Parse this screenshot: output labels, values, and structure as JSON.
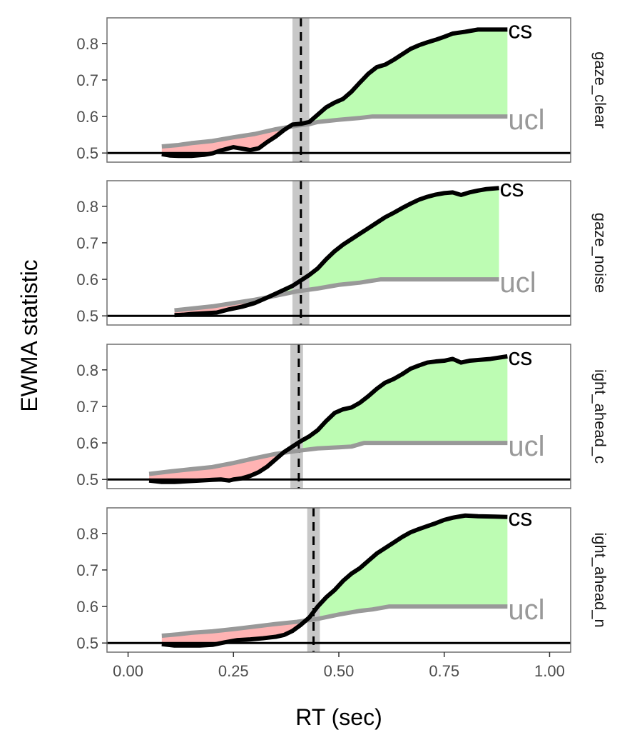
{
  "chart_data": {
    "type": "line",
    "xlabel": "RT (sec)",
    "ylabel": "EWMA statistic",
    "xlim": [
      -0.05,
      1.05
    ],
    "ylim": [
      0.475,
      0.87
    ],
    "x_ticks": [
      0.0,
      0.25,
      0.5,
      0.75,
      1.0
    ],
    "x_tick_labels": [
      "0.00",
      "0.25",
      "0.50",
      "0.75",
      "1.00"
    ],
    "y_ticks": [
      0.5,
      0.6,
      0.7,
      0.8
    ],
    "y_tick_labels": [
      "0.5",
      "0.6",
      "0.7",
      "0.8"
    ],
    "baseline": 0.5,
    "grid": false,
    "end_labels": {
      "cs": "cs",
      "ucl": "ucl"
    },
    "colors": {
      "cs": "#000000",
      "ucl": "#999999",
      "above_fill": "#bdfcb3",
      "below_fill": "#ffb3b3",
      "cutoff_band": "#c8c8c8",
      "panel_border": "#6f6f6f"
    },
    "panels": [
      {
        "strip": "gaze_clear",
        "cutoff": 0.41,
        "cutoff_band": [
          0.39,
          0.43
        ],
        "cs": [
          [
            0.08,
            0.497
          ],
          [
            0.1,
            0.493
          ],
          [
            0.12,
            0.492
          ],
          [
            0.15,
            0.492
          ],
          [
            0.18,
            0.495
          ],
          [
            0.2,
            0.499
          ],
          [
            0.22,
            0.507
          ],
          [
            0.25,
            0.516
          ],
          [
            0.27,
            0.512
          ],
          [
            0.29,
            0.508
          ],
          [
            0.31,
            0.513
          ],
          [
            0.33,
            0.53
          ],
          [
            0.35,
            0.545
          ],
          [
            0.37,
            0.563
          ],
          [
            0.39,
            0.578
          ],
          [
            0.41,
            0.58
          ],
          [
            0.43,
            0.585
          ],
          [
            0.45,
            0.605
          ],
          [
            0.47,
            0.625
          ],
          [
            0.49,
            0.638
          ],
          [
            0.51,
            0.648
          ],
          [
            0.53,
            0.668
          ],
          [
            0.55,
            0.693
          ],
          [
            0.57,
            0.717
          ],
          [
            0.59,
            0.735
          ],
          [
            0.61,
            0.742
          ],
          [
            0.63,
            0.755
          ],
          [
            0.65,
            0.77
          ],
          [
            0.67,
            0.785
          ],
          [
            0.69,
            0.795
          ],
          [
            0.71,
            0.803
          ],
          [
            0.73,
            0.81
          ],
          [
            0.75,
            0.818
          ],
          [
            0.77,
            0.827
          ],
          [
            0.8,
            0.832
          ],
          [
            0.83,
            0.838
          ],
          [
            0.87,
            0.838
          ],
          [
            0.9,
            0.838
          ]
        ],
        "ucl": [
          [
            0.08,
            0.518
          ],
          [
            0.12,
            0.522
          ],
          [
            0.15,
            0.527
          ],
          [
            0.2,
            0.533
          ],
          [
            0.25,
            0.543
          ],
          [
            0.3,
            0.552
          ],
          [
            0.35,
            0.565
          ],
          [
            0.4,
            0.575
          ],
          [
            0.43,
            0.579
          ],
          [
            0.45,
            0.585
          ],
          [
            0.5,
            0.591
          ],
          [
            0.55,
            0.596
          ],
          [
            0.58,
            0.6
          ],
          [
            0.62,
            0.6
          ],
          [
            0.7,
            0.6
          ],
          [
            0.8,
            0.6
          ],
          [
            0.9,
            0.6
          ]
        ]
      },
      {
        "strip": "gaze_noise",
        "cutoff": 0.41,
        "cutoff_band": [
          0.39,
          0.43
        ],
        "cs": [
          [
            0.11,
            0.502
          ],
          [
            0.13,
            0.503
          ],
          [
            0.15,
            0.505
          ],
          [
            0.18,
            0.507
          ],
          [
            0.21,
            0.509
          ],
          [
            0.24,
            0.518
          ],
          [
            0.27,
            0.525
          ],
          [
            0.3,
            0.535
          ],
          [
            0.33,
            0.55
          ],
          [
            0.36,
            0.566
          ],
          [
            0.39,
            0.582
          ],
          [
            0.41,
            0.597
          ],
          [
            0.43,
            0.612
          ],
          [
            0.45,
            0.63
          ],
          [
            0.47,
            0.655
          ],
          [
            0.49,
            0.677
          ],
          [
            0.51,
            0.695
          ],
          [
            0.53,
            0.71
          ],
          [
            0.55,
            0.725
          ],
          [
            0.57,
            0.74
          ],
          [
            0.59,
            0.755
          ],
          [
            0.61,
            0.77
          ],
          [
            0.63,
            0.782
          ],
          [
            0.65,
            0.795
          ],
          [
            0.67,
            0.807
          ],
          [
            0.69,
            0.818
          ],
          [
            0.71,
            0.826
          ],
          [
            0.73,
            0.832
          ],
          [
            0.75,
            0.836
          ],
          [
            0.77,
            0.838
          ],
          [
            0.79,
            0.831
          ],
          [
            0.81,
            0.838
          ],
          [
            0.83,
            0.843
          ],
          [
            0.85,
            0.847
          ],
          [
            0.88,
            0.85
          ]
        ],
        "ucl": [
          [
            0.11,
            0.515
          ],
          [
            0.15,
            0.52
          ],
          [
            0.2,
            0.526
          ],
          [
            0.25,
            0.535
          ],
          [
            0.3,
            0.544
          ],
          [
            0.35,
            0.555
          ],
          [
            0.4,
            0.567
          ],
          [
            0.45,
            0.575
          ],
          [
            0.5,
            0.585
          ],
          [
            0.55,
            0.591
          ],
          [
            0.6,
            0.6
          ],
          [
            0.7,
            0.6
          ],
          [
            0.8,
            0.6
          ],
          [
            0.88,
            0.6
          ]
        ]
      },
      {
        "strip": "ight_ahead_c",
        "cutoff": 0.405,
        "cutoff_band": [
          0.385,
          0.415
        ],
        "cs": [
          [
            0.05,
            0.497
          ],
          [
            0.08,
            0.493
          ],
          [
            0.11,
            0.493
          ],
          [
            0.14,
            0.495
          ],
          [
            0.17,
            0.497
          ],
          [
            0.2,
            0.499
          ],
          [
            0.22,
            0.5
          ],
          [
            0.24,
            0.497
          ],
          [
            0.25,
            0.5
          ],
          [
            0.27,
            0.503
          ],
          [
            0.29,
            0.51
          ],
          [
            0.31,
            0.52
          ],
          [
            0.33,
            0.535
          ],
          [
            0.35,
            0.555
          ],
          [
            0.37,
            0.575
          ],
          [
            0.39,
            0.59
          ],
          [
            0.41,
            0.605
          ],
          [
            0.43,
            0.618
          ],
          [
            0.45,
            0.635
          ],
          [
            0.47,
            0.66
          ],
          [
            0.49,
            0.682
          ],
          [
            0.51,
            0.692
          ],
          [
            0.53,
            0.697
          ],
          [
            0.55,
            0.71
          ],
          [
            0.57,
            0.728
          ],
          [
            0.59,
            0.748
          ],
          [
            0.61,
            0.765
          ],
          [
            0.63,
            0.775
          ],
          [
            0.65,
            0.788
          ],
          [
            0.67,
            0.803
          ],
          [
            0.69,
            0.812
          ],
          [
            0.71,
            0.82
          ],
          [
            0.73,
            0.823
          ],
          [
            0.75,
            0.825
          ],
          [
            0.77,
            0.83
          ],
          [
            0.79,
            0.82
          ],
          [
            0.81,
            0.825
          ],
          [
            0.83,
            0.827
          ],
          [
            0.86,
            0.83
          ],
          [
            0.9,
            0.837
          ]
        ],
        "ucl": [
          [
            0.05,
            0.515
          ],
          [
            0.1,
            0.522
          ],
          [
            0.15,
            0.528
          ],
          [
            0.2,
            0.534
          ],
          [
            0.25,
            0.545
          ],
          [
            0.3,
            0.558
          ],
          [
            0.35,
            0.57
          ],
          [
            0.4,
            0.578
          ],
          [
            0.45,
            0.585
          ],
          [
            0.5,
            0.588
          ],
          [
            0.53,
            0.59
          ],
          [
            0.56,
            0.6
          ],
          [
            0.6,
            0.6
          ],
          [
            0.7,
            0.6
          ],
          [
            0.8,
            0.6
          ],
          [
            0.9,
            0.6
          ]
        ]
      },
      {
        "strip": "ight_ahead_n",
        "cutoff": 0.44,
        "cutoff_band": [
          0.425,
          0.455
        ],
        "cs": [
          [
            0.08,
            0.497
          ],
          [
            0.11,
            0.493
          ],
          [
            0.14,
            0.493
          ],
          [
            0.17,
            0.493
          ],
          [
            0.2,
            0.495
          ],
          [
            0.23,
            0.502
          ],
          [
            0.26,
            0.508
          ],
          [
            0.29,
            0.51
          ],
          [
            0.32,
            0.513
          ],
          [
            0.35,
            0.517
          ],
          [
            0.37,
            0.522
          ],
          [
            0.39,
            0.533
          ],
          [
            0.41,
            0.55
          ],
          [
            0.43,
            0.57
          ],
          [
            0.45,
            0.6
          ],
          [
            0.47,
            0.625
          ],
          [
            0.49,
            0.645
          ],
          [
            0.51,
            0.67
          ],
          [
            0.53,
            0.69
          ],
          [
            0.55,
            0.705
          ],
          [
            0.57,
            0.725
          ],
          [
            0.59,
            0.745
          ],
          [
            0.61,
            0.76
          ],
          [
            0.63,
            0.775
          ],
          [
            0.65,
            0.79
          ],
          [
            0.67,
            0.803
          ],
          [
            0.69,
            0.812
          ],
          [
            0.71,
            0.82
          ],
          [
            0.73,
            0.828
          ],
          [
            0.75,
            0.837
          ],
          [
            0.77,
            0.843
          ],
          [
            0.8,
            0.849
          ],
          [
            0.83,
            0.847
          ],
          [
            0.87,
            0.846
          ],
          [
            0.9,
            0.845
          ]
        ],
        "ucl": [
          [
            0.08,
            0.52
          ],
          [
            0.12,
            0.524
          ],
          [
            0.15,
            0.528
          ],
          [
            0.2,
            0.532
          ],
          [
            0.25,
            0.538
          ],
          [
            0.3,
            0.545
          ],
          [
            0.35,
            0.552
          ],
          [
            0.4,
            0.558
          ],
          [
            0.45,
            0.566
          ],
          [
            0.5,
            0.578
          ],
          [
            0.55,
            0.588
          ],
          [
            0.58,
            0.592
          ],
          [
            0.62,
            0.6
          ],
          [
            0.7,
            0.6
          ],
          [
            0.8,
            0.6
          ],
          [
            0.9,
            0.6
          ]
        ]
      }
    ]
  }
}
